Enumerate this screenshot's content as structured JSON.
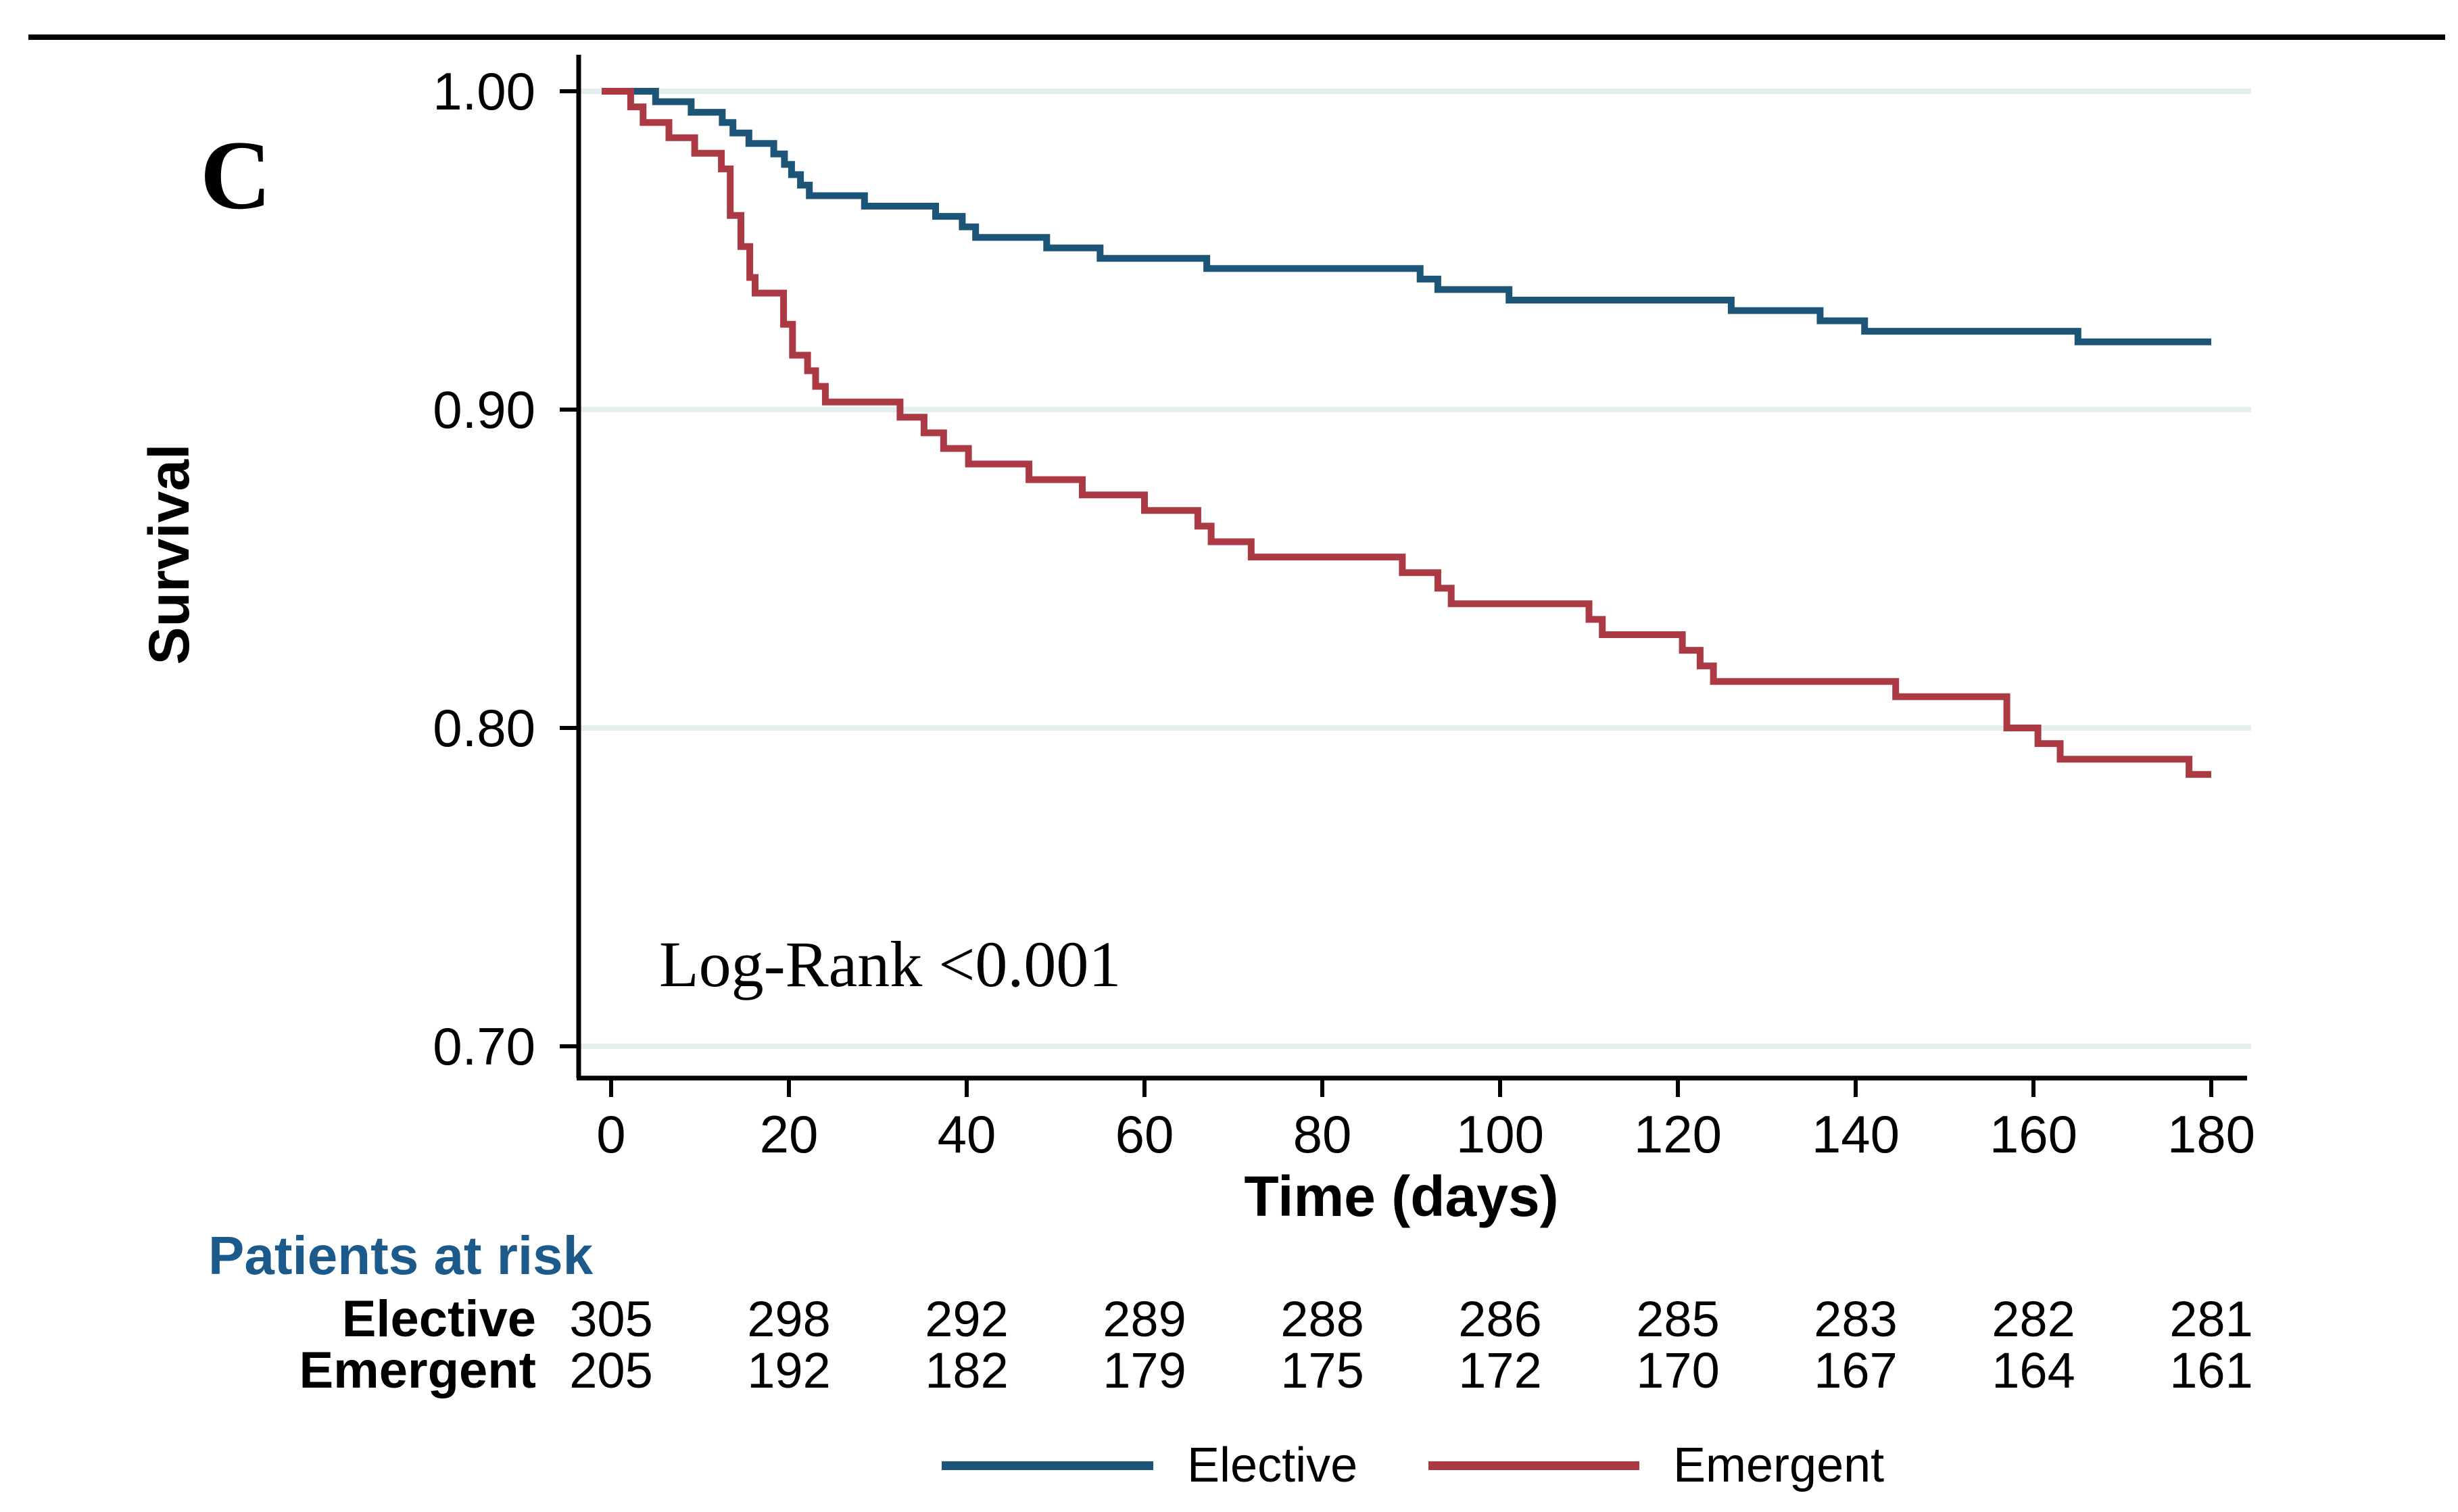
{
  "panel_label": "C",
  "annotation": "Log-Rank <0.001",
  "colors": {
    "elective": "#1d5578",
    "emergent": "#ac3a44",
    "risk_heading": "#1d5a8c",
    "gridline": "#e2f0ef",
    "axis": "#000000",
    "background": "#ffffff"
  },
  "chart_data": {
    "type": "line",
    "subtype": "kaplan-meier-step",
    "title": "",
    "xlabel": "Time (days)",
    "ylabel": "Survival",
    "xlim": [
      0,
      180
    ],
    "ylim": [
      0.7,
      1.0
    ],
    "grid": true,
    "legend_position": "bottom",
    "x_ticks": [
      0,
      20,
      40,
      60,
      80,
      100,
      120,
      140,
      160,
      180
    ],
    "x_tick_labels": [
      "0",
      "20",
      "40",
      "60",
      "80",
      "100",
      "120",
      "140",
      "160",
      "180"
    ],
    "y_tick_values": [
      1.0,
      0.9,
      0.8,
      0.7
    ],
    "y_tick_labels": [
      "1.00",
      "0.90",
      "0.80",
      "0.70"
    ],
    "series": [
      {
        "name": "Elective",
        "color": "#1d5578",
        "points": [
          [
            0,
            1.0
          ],
          [
            5,
            0.9967
          ],
          [
            9,
            0.9934
          ],
          [
            12.5,
            0.9902
          ],
          [
            13.7,
            0.9869
          ],
          [
            15.5,
            0.9836
          ],
          [
            18.3,
            0.9803
          ],
          [
            19.5,
            0.977
          ],
          [
            20.3,
            0.9738
          ],
          [
            21.3,
            0.9705
          ],
          [
            22.3,
            0.9672
          ],
          [
            28.5,
            0.9639
          ],
          [
            36.5,
            0.9607
          ],
          [
            39.5,
            0.9574
          ],
          [
            41,
            0.9541
          ],
          [
            49,
            0.9508
          ],
          [
            55,
            0.9475
          ],
          [
            67,
            0.9443
          ],
          [
            91,
            0.941
          ],
          [
            93,
            0.9377
          ],
          [
            101,
            0.9344
          ],
          [
            126,
            0.9311
          ],
          [
            136,
            0.9279
          ],
          [
            141,
            0.9246
          ],
          [
            165,
            0.9213
          ],
          [
            180,
            0.9213
          ]
        ]
      },
      {
        "name": "Emergent",
        "color": "#ac3a44",
        "points": [
          [
            0,
            1.0
          ],
          [
            2.2,
            0.9951
          ],
          [
            3.6,
            0.9902
          ],
          [
            6.5,
            0.9854
          ],
          [
            9.4,
            0.9805
          ],
          [
            12.4,
            0.9756
          ],
          [
            13.4,
            0.961
          ],
          [
            14.6,
            0.9512
          ],
          [
            15.6,
            0.9415
          ],
          [
            16.2,
            0.9366
          ],
          [
            19.4,
            0.9268
          ],
          [
            20.4,
            0.9171
          ],
          [
            22.1,
            0.9122
          ],
          [
            23,
            0.9073
          ],
          [
            24.1,
            0.9024
          ],
          [
            32.5,
            0.8976
          ],
          [
            35.2,
            0.8927
          ],
          [
            37.4,
            0.8878
          ],
          [
            40.2,
            0.8829
          ],
          [
            47,
            0.878
          ],
          [
            53,
            0.8732
          ],
          [
            60,
            0.8683
          ],
          [
            66,
            0.8634
          ],
          [
            67.5,
            0.8585
          ],
          [
            72,
            0.8537
          ],
          [
            89,
            0.8488
          ],
          [
            93,
            0.8439
          ],
          [
            94.5,
            0.839
          ],
          [
            110,
            0.8341
          ],
          [
            111.5,
            0.8293
          ],
          [
            120.5,
            0.8244
          ],
          [
            122.5,
            0.8195
          ],
          [
            124,
            0.8146
          ],
          [
            144.5,
            0.8098
          ],
          [
            157,
            0.8
          ],
          [
            160.5,
            0.7951
          ],
          [
            163,
            0.7902
          ],
          [
            177.5,
            0.7854
          ],
          [
            180,
            0.7854
          ]
        ]
      }
    ]
  },
  "risk_table": {
    "heading": "Patients at risk",
    "times": [
      0,
      20,
      40,
      60,
      80,
      100,
      120,
      140,
      160,
      180
    ],
    "rows": [
      {
        "label": "Elective",
        "values": [
          "305",
          "298",
          "292",
          "289",
          "288",
          "286",
          "285",
          "283",
          "282",
          "281"
        ]
      },
      {
        "label": "Emergent",
        "values": [
          "205",
          "192",
          "182",
          "179",
          "175",
          "172",
          "170",
          "167",
          "164",
          "161"
        ]
      }
    ]
  },
  "legend": {
    "items": [
      {
        "label": "Elective",
        "color": "#1d5578"
      },
      {
        "label": "Emergent",
        "color": "#ac3a44"
      }
    ]
  }
}
